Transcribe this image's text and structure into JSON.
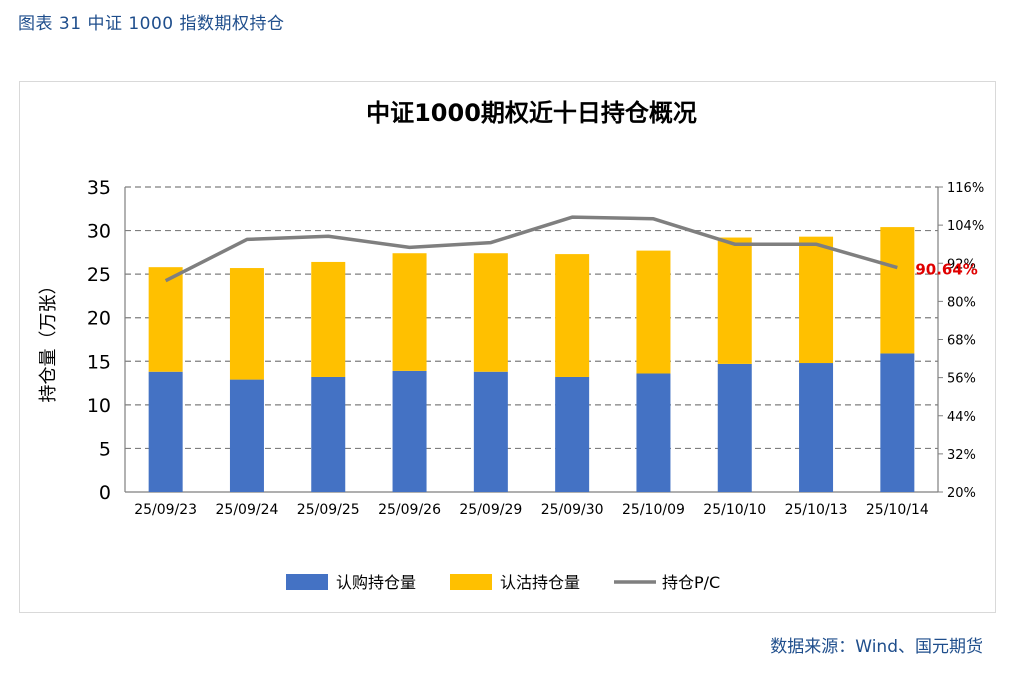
{
  "caption": "图表 31 中证 1000 指数期权持仓",
  "source": "数据来源：Wind、国元期货",
  "chart_data": {
    "type": "bar",
    "stacked": true,
    "title": "中证1000期权近十日持仓概况",
    "ylabel": "持仓量（万张）",
    "ylim": [
      0,
      35
    ],
    "yticks": [
      "0",
      "5",
      "10",
      "15",
      "20",
      "25",
      "30",
      "35"
    ],
    "y2lim": [
      20,
      116
    ],
    "y2ticks": [
      "20%",
      "32%",
      "44%",
      "56%",
      "68%",
      "80%",
      "92%",
      "104%",
      "116%"
    ],
    "grid": true,
    "legend_position": "bottom",
    "categories": [
      "25/09/23",
      "25/09/24",
      "25/09/25",
      "25/09/26",
      "25/09/29",
      "25/09/30",
      "25/10/09",
      "25/10/10",
      "25/10/13",
      "25/10/14"
    ],
    "series": [
      {
        "name": "认购持仓量",
        "kind": "bar",
        "color": "#4472c4",
        "values": [
          13.8,
          12.9,
          13.2,
          13.9,
          13.8,
          13.2,
          13.6,
          14.7,
          14.8,
          15.9
        ]
      },
      {
        "name": "认沽持仓量",
        "kind": "bar",
        "color": "#ffc000",
        "values": [
          12.0,
          12.8,
          13.2,
          13.5,
          13.6,
          14.1,
          14.1,
          14.5,
          14.5,
          14.5
        ]
      },
      {
        "name": "持仓P/C",
        "kind": "line",
        "axis": "right",
        "color": "#7f7f7f",
        "values": [
          86.5,
          99.5,
          100.5,
          97.0,
          98.5,
          106.5,
          106.0,
          98.0,
          98.0,
          90.64
        ]
      }
    ],
    "annotation": {
      "text": "90.64%",
      "color": "#e00000"
    }
  }
}
